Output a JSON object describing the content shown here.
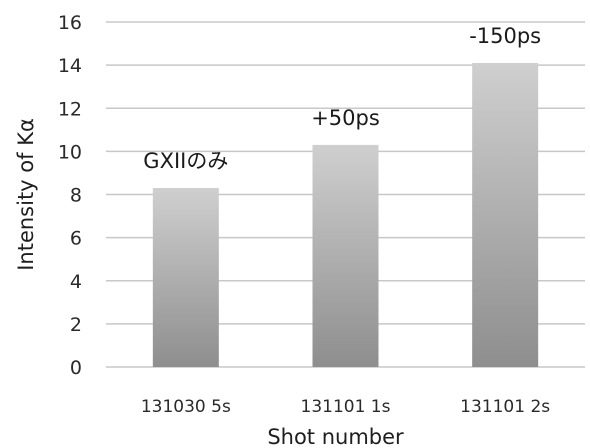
{
  "chart_data": {
    "type": "bar",
    "categories": [
      "131030 5s",
      "131101 1s",
      "131101 2s"
    ],
    "values": [
      8.3,
      10.3,
      14.1
    ],
    "data_labels": [
      "GXIIのみ",
      "+50ps",
      "-150ps"
    ],
    "title": "",
    "xlabel": "Shot number",
    "ylabel": "Intensity of Kα",
    "ylim": [
      0,
      16
    ],
    "yticks": [
      0,
      2,
      4,
      6,
      8,
      10,
      12,
      14,
      16
    ],
    "grid": true,
    "legend": "none",
    "colors": {
      "bar_light": "#cfcfcf",
      "bar_dark": "#8e8e8e",
      "grid": "#c8c8c8",
      "text": "#2a2a2a"
    }
  }
}
